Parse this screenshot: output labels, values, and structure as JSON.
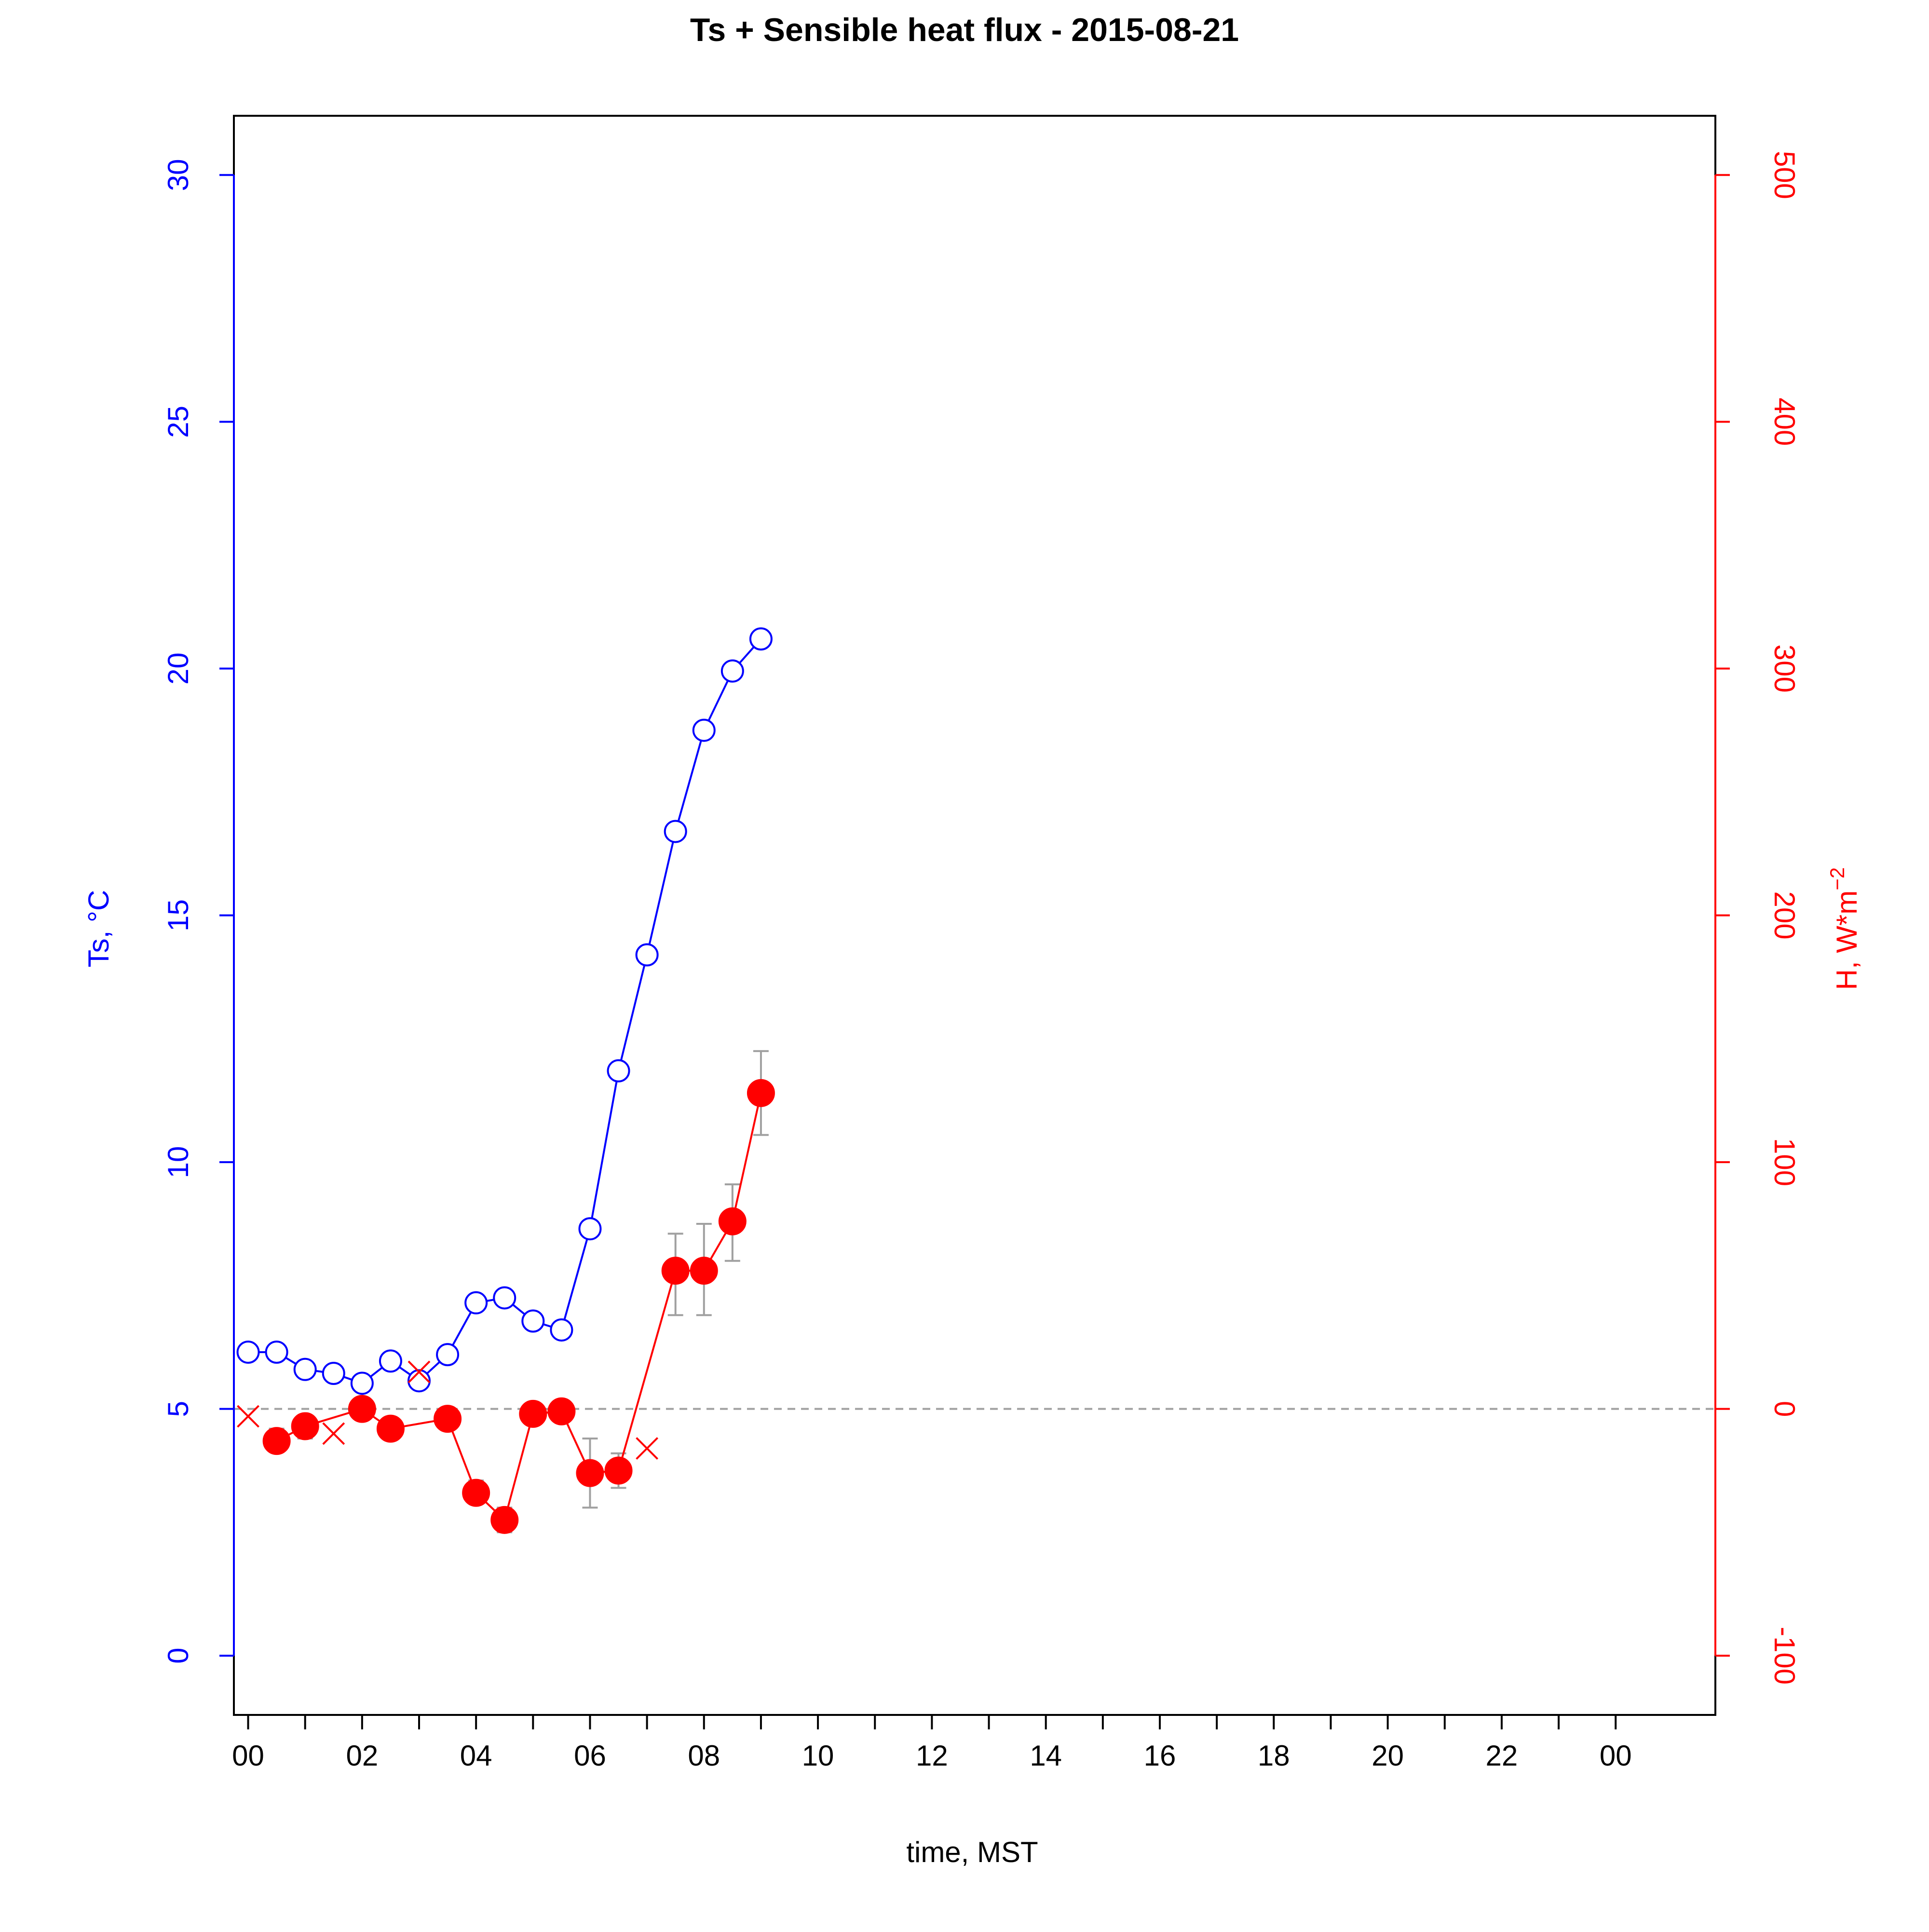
{
  "chart_data": {
    "type": "line",
    "title": "Ts + Sensible heat flux -  2015-08-21",
    "xlabel": "time, MST",
    "xlim": [
      -0.25,
      25.75
    ],
    "x_ticks": [
      0,
      1,
      2,
      3,
      4,
      5,
      6,
      7,
      8,
      9,
      10,
      11,
      12,
      13,
      14,
      15,
      16,
      17,
      18,
      19,
      20,
      21,
      22,
      23,
      24
    ],
    "x_tick_labels": [
      "00",
      "02",
      "04",
      "06",
      "08",
      "10",
      "12",
      "14",
      "16",
      "18",
      "20",
      "22",
      "00"
    ],
    "x_tick_label_positions": [
      0,
      2,
      4,
      6,
      8,
      10,
      12,
      14,
      16,
      18,
      20,
      22,
      24
    ],
    "y_left": {
      "label": "Ts, °C",
      "color": "#0000ff",
      "ylim": [
        -1.2,
        31.2
      ],
      "ticks": [
        0,
        5,
        10,
        15,
        20,
        25,
        30
      ],
      "tick_labels": [
        "0",
        "5",
        "10",
        "15",
        "20",
        "25",
        "30"
      ]
    },
    "y_right": {
      "label_main": "H, W*m",
      "label_sup": "−2",
      "color": "#ff0000",
      "ylim": [
        -124,
        524
      ],
      "ticks": [
        -100,
        0,
        100,
        200,
        300,
        400,
        500
      ],
      "tick_labels": [
        "-100",
        "0",
        "100",
        "200",
        "300",
        "400",
        "500"
      ]
    },
    "zero_line": {
      "value": 0,
      "axis": "right",
      "color": "#a0a0a0"
    },
    "series": [
      {
        "axis": "left",
        "color": "#0000ff",
        "marker": "open-circle",
        "x": [
          0,
          0.5,
          1,
          1.5,
          2,
          2.5,
          3,
          3.5,
          4,
          4.5,
          5,
          5.5,
          6,
          6.5,
          7,
          7.5,
          8,
          8.5,
          9
        ],
        "y": [
          6.15,
          6.15,
          5.8,
          5.72,
          5.52,
          5.97,
          5.57,
          6.1,
          7.15,
          7.25,
          6.78,
          6.6,
          8.65,
          11.85,
          14.2,
          16.7,
          18.75,
          19.95,
          20.6
        ]
      },
      {
        "axis": "right",
        "color": "#ff0000",
        "marker": "filled-circle",
        "x": [
          0.5,
          1,
          2,
          2.5,
          3.5,
          4,
          4.5,
          5,
          5.5,
          6,
          6.5,
          7.5,
          8,
          8.5,
          9
        ],
        "y": [
          -13,
          -7,
          0,
          -8,
          -4,
          -34,
          -45,
          -2,
          -1,
          -26,
          -25,
          56,
          56,
          76,
          128
        ],
        "err_low": [
          -17,
          -12,
          null,
          null,
          null,
          -38,
          -50,
          null,
          null,
          -40,
          -32,
          38,
          38,
          60,
          111
        ],
        "err_high": [
          -8,
          -3,
          null,
          null,
          null,
          -29,
          -40,
          null,
          null,
          -12,
          -18,
          71,
          75,
          91,
          145
        ]
      },
      {
        "axis": "right",
        "color": "#ff0000",
        "marker": "cross",
        "x": [
          0,
          1.5,
          3,
          7
        ],
        "y": [
          -3,
          -10,
          15,
          -16
        ]
      }
    ],
    "error_bar_color": "#a0a0a0",
    "grid": false,
    "legend": "none"
  }
}
